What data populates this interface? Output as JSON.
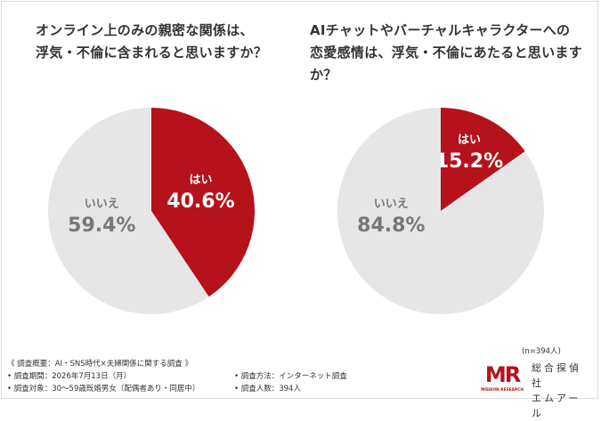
{
  "questions": {
    "q1_line1": "オンライン上のみの親密な関係は、",
    "q1_line2": "浮気・不倫に含まれると思いますか？",
    "q2_line1": "AIチャットやバーチャルキャラクターへの",
    "q2_line2": "恋愛感情は、浮気・不倫にあたると思いますか？"
  },
  "colors": {
    "yes": "#b5121b",
    "no": "#e6e6e6",
    "yes_text": "#ffffff",
    "no_text": "#777777"
  },
  "chart_data": [
    {
      "type": "pie",
      "title": "オンライン上のみの親密な関係は、浮気・不倫に含まれると思いますか？",
      "slices": [
        {
          "label": "はい",
          "value": 40.6,
          "display": "40.6%"
        },
        {
          "label": "いいえ",
          "value": 59.4,
          "display": "59.4%"
        }
      ]
    },
    {
      "type": "pie",
      "title": "AIチャットやバーチャルキャラクターへの恋愛感情は、浮気・不倫にあたると思いますか？",
      "slices": [
        {
          "label": "はい",
          "value": 15.2,
          "display": "15.2%"
        },
        {
          "label": "いいえ",
          "value": 84.8,
          "display": "84.8%"
        }
      ]
    }
  ],
  "footer": {
    "overview": "《 調査概要：AI・SNS時代×夫婦関係に関する調査 》",
    "period": "• 調査期間：2026年7月13日（月）",
    "target": "• 調査対象：30～59歳既婚男女（配偶者あり・同居中）",
    "method": "• 調査方法：インターネット調査",
    "count": "• 調査人数：394人"
  },
  "sample_size": "(n=394人)",
  "logo": {
    "mark_text": "MR",
    "sub_text": "MISSION RESEARCH",
    "name_line1": "総合探偵社",
    "name_line2": "エムアール"
  }
}
